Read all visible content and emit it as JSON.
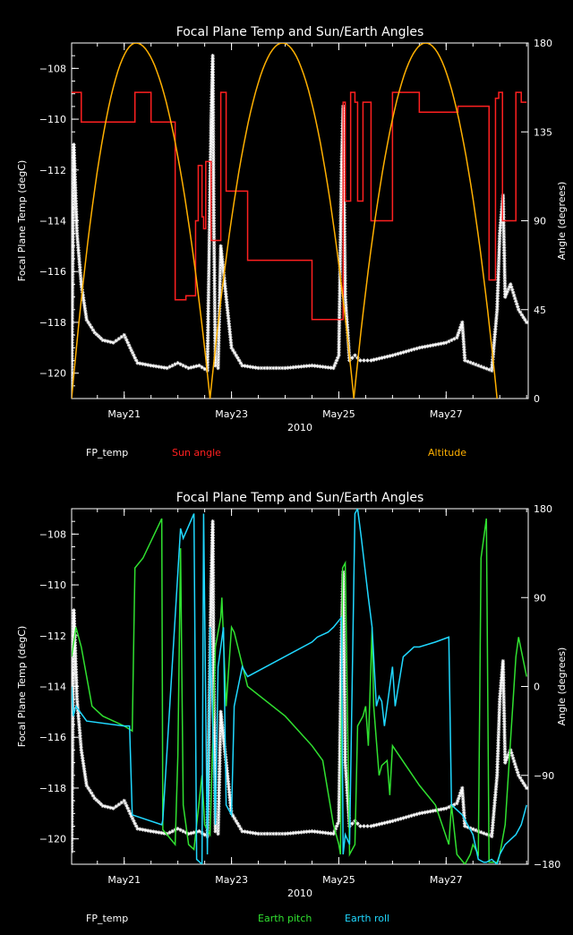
{
  "chart_data": [
    {
      "type": "line",
      "title": "Focal Plane Temp and Sun/Earth Angles",
      "xlabel": "2010",
      "ylabel": "Focal Plane Temp (degC)",
      "y2label": "Angle (degrees)",
      "x_ticks": [
        "May21",
        "May23",
        "May25",
        "May27"
      ],
      "x_tick_days": [
        21,
        23,
        25,
        27
      ],
      "xlim": [
        20.02,
        28.53
      ],
      "ylim": [
        -121,
        -107
      ],
      "y_ticks": [
        -120,
        -118,
        -116,
        -114,
        -112,
        -110,
        -108
      ],
      "y2lim": [
        0,
        180
      ],
      "y2_ticks": [
        0,
        45,
        90,
        135,
        180
      ],
      "legend": [
        "FP_temp",
        "Sun angle",
        "Altitude"
      ],
      "legend_colors": [
        "#ffffff",
        "#ff2020",
        "#ffb000"
      ],
      "series": [
        {
          "name": "FP_temp",
          "axis": "left",
          "color": "#ffffff",
          "style": "asterisk",
          "x": [
            20.02,
            20.06,
            20.12,
            20.2,
            20.3,
            20.45,
            20.6,
            20.8,
            21.0,
            21.2,
            21.25,
            21.5,
            21.8,
            22.0,
            22.2,
            22.4,
            22.55,
            22.62,
            22.65,
            22.67,
            22.7,
            22.75,
            22.8,
            22.9,
            23.0,
            23.2,
            23.5,
            24.0,
            24.5,
            24.9,
            25.0,
            25.05,
            25.08,
            25.12,
            25.2,
            25.3,
            25.4,
            25.6,
            26.0,
            26.5,
            27.0,
            27.2,
            27.3,
            27.35,
            27.6,
            27.85,
            27.95,
            28.0,
            28.06,
            28.1,
            28.2,
            28.35,
            28.5
          ],
          "y": [
            -120.5,
            -111.0,
            -114.5,
            -116.5,
            -117.9,
            -118.4,
            -118.7,
            -118.8,
            -118.5,
            -119.4,
            -119.6,
            -119.7,
            -119.8,
            -119.6,
            -119.8,
            -119.7,
            -119.9,
            -110.0,
            -107.5,
            -114.0,
            -119.7,
            -119.8,
            -115.0,
            -117.0,
            -119.0,
            -119.7,
            -119.8,
            -119.8,
            -119.7,
            -119.8,
            -119.3,
            -112.0,
            -109.5,
            -117.0,
            -119.5,
            -119.3,
            -119.5,
            -119.5,
            -119.3,
            -119.0,
            -118.8,
            -118.6,
            -118.0,
            -119.5,
            -119.7,
            -119.9,
            -117.5,
            -114.5,
            -113.0,
            -117.0,
            -116.5,
            -117.5,
            -118.0
          ]
        },
        {
          "name": "Sun angle",
          "axis": "right",
          "color": "#ff2020",
          "style": "step",
          "x": [
            20.02,
            20.15,
            20.2,
            20.8,
            21.0,
            21.2,
            21.3,
            21.5,
            21.9,
            21.95,
            22.08,
            22.15,
            22.33,
            22.38,
            22.42,
            22.45,
            22.48,
            22.52,
            22.55,
            22.62,
            22.7,
            22.8,
            22.9,
            23.3,
            23.5,
            24.5,
            24.8,
            25.0,
            25.08,
            25.12,
            25.16,
            25.22,
            25.3,
            25.35,
            25.4,
            25.45,
            25.6,
            26.0,
            26.5,
            27.0,
            27.15,
            27.22,
            27.4,
            27.5,
            27.75,
            27.8,
            27.85,
            27.92,
            27.98,
            28.05,
            28.15,
            28.3,
            28.38,
            28.4,
            28.5
          ],
          "y": [
            155,
            155,
            140,
            140,
            140,
            155,
            155,
            140,
            140,
            50,
            50,
            52,
            90,
            118,
            118,
            92,
            86,
            120,
            120,
            80,
            80,
            155,
            105,
            70,
            70,
            40,
            40,
            40,
            150,
            100,
            100,
            155,
            150,
            100,
            100,
            150,
            90,
            155,
            145,
            145,
            145,
            148,
            148,
            148,
            148,
            60,
            60,
            152,
            155,
            90,
            90,
            155,
            155,
            150,
            150
          ]
        },
        {
          "name": "Altitude",
          "axis": "right",
          "color": "#ffb000",
          "style": "arcs",
          "peaks": [
            21.22,
            23.95,
            26.62
          ],
          "peak_value": 180,
          "zeros": [
            20.02,
            22.6,
            25.28,
            27.95
          ]
        }
      ]
    },
    {
      "type": "line",
      "title": "Focal Plane Temp and Sun/Earth Angles",
      "xlabel": "2010",
      "ylabel": "Focal Plane Temp (degC)",
      "y2label": "Angle (degrees)",
      "x_ticks": [
        "May21",
        "May23",
        "May25",
        "May27"
      ],
      "x_tick_days": [
        21,
        23,
        25,
        27
      ],
      "xlim": [
        20.02,
        28.53
      ],
      "ylim": [
        -121,
        -107
      ],
      "y_ticks": [
        -120,
        -118,
        -116,
        -114,
        -112,
        -110,
        -108
      ],
      "y2lim": [
        -180,
        180
      ],
      "y2_ticks": [
        -180,
        -90,
        0,
        90,
        180
      ],
      "legend": [
        "FP_temp",
        "Earth pitch",
        "Earth roll"
      ],
      "legend_colors": [
        "#ffffff",
        "#30e030",
        "#20d8ff"
      ],
      "series": [
        {
          "name": "FP_temp",
          "axis": "left",
          "color": "#ffffff",
          "style": "asterisk",
          "ref": 0
        },
        {
          "name": "Earth pitch",
          "axis": "right",
          "color": "#30e030",
          "style": "line",
          "x": [
            20.02,
            20.1,
            20.2,
            20.4,
            20.6,
            21.0,
            21.15,
            21.2,
            21.35,
            21.7,
            21.72,
            21.95,
            22.0,
            22.05,
            22.1,
            22.2,
            22.3,
            22.45,
            22.5,
            22.6,
            22.7,
            22.8,
            22.82,
            22.9,
            23.0,
            23.05,
            23.3,
            24.0,
            24.5,
            24.7,
            24.9,
            25.0,
            25.03,
            25.07,
            25.12,
            25.2,
            25.3,
            25.35,
            25.45,
            25.5,
            25.55,
            25.62,
            25.65,
            25.75,
            25.8,
            25.9,
            25.95,
            26.0,
            26.5,
            26.8,
            27.05,
            27.1,
            27.2,
            27.35,
            27.45,
            27.5,
            27.6,
            27.65,
            27.75,
            27.8,
            27.95,
            28.0,
            28.1,
            28.3,
            28.35,
            28.5
          ],
          "y": [
            30,
            60,
            40,
            -20,
            -30,
            -40,
            -45,
            120,
            130,
            170,
            -145,
            -160,
            -70,
            140,
            -120,
            -160,
            -165,
            -90,
            -140,
            -150,
            40,
            70,
            90,
            -20,
            60,
            55,
            0,
            -30,
            -60,
            -75,
            -140,
            -160,
            -170,
            120,
            125,
            -170,
            -160,
            -40,
            -30,
            -20,
            -60,
            60,
            -20,
            -90,
            -80,
            -75,
            -110,
            -60,
            -100,
            -120,
            -160,
            -120,
            -170,
            -180,
            -170,
            -160,
            -170,
            130,
            170,
            -178,
            -178,
            -170,
            -140,
            30,
            50,
            10
          ]
        },
        {
          "name": "Earth roll",
          "axis": "right",
          "color": "#20d8ff",
          "style": "line",
          "x": [
            20.02,
            20.05,
            20.1,
            20.3,
            21.0,
            21.1,
            21.15,
            21.7,
            21.72,
            22.05,
            22.1,
            22.3,
            22.35,
            22.45,
            22.48,
            22.55,
            22.6,
            22.7,
            22.75,
            22.85,
            22.9,
            23.0,
            23.05,
            23.2,
            23.3,
            24.5,
            24.6,
            24.8,
            24.9,
            25.05,
            25.08,
            25.12,
            25.2,
            25.3,
            25.35,
            25.42,
            25.55,
            25.62,
            25.7,
            25.75,
            25.8,
            25.85,
            26.0,
            26.05,
            26.2,
            26.4,
            26.5,
            26.8,
            27.05,
            27.1,
            27.2,
            27.3,
            27.4,
            27.5,
            27.6,
            27.7,
            27.75,
            27.85,
            27.95,
            28.0,
            28.1,
            28.2,
            28.3,
            28.4,
            28.5
          ],
          "y": [
            0,
            -30,
            -20,
            -35,
            -40,
            -40,
            -130,
            -140,
            -135,
            160,
            150,
            175,
            -175,
            -180,
            175,
            -170,
            60,
            -140,
            20,
            60,
            -120,
            -130,
            -20,
            20,
            10,
            45,
            50,
            55,
            60,
            70,
            -170,
            -150,
            -160,
            175,
            180,
            150,
            90,
            60,
            -20,
            -10,
            -15,
            -40,
            20,
            -20,
            30,
            40,
            40,
            45,
            50,
            -120,
            -125,
            -130,
            -140,
            -150,
            -175,
            -178,
            -178,
            -175,
            -180,
            -170,
            -160,
            -155,
            -150,
            -140,
            -120
          ]
        }
      ]
    }
  ]
}
